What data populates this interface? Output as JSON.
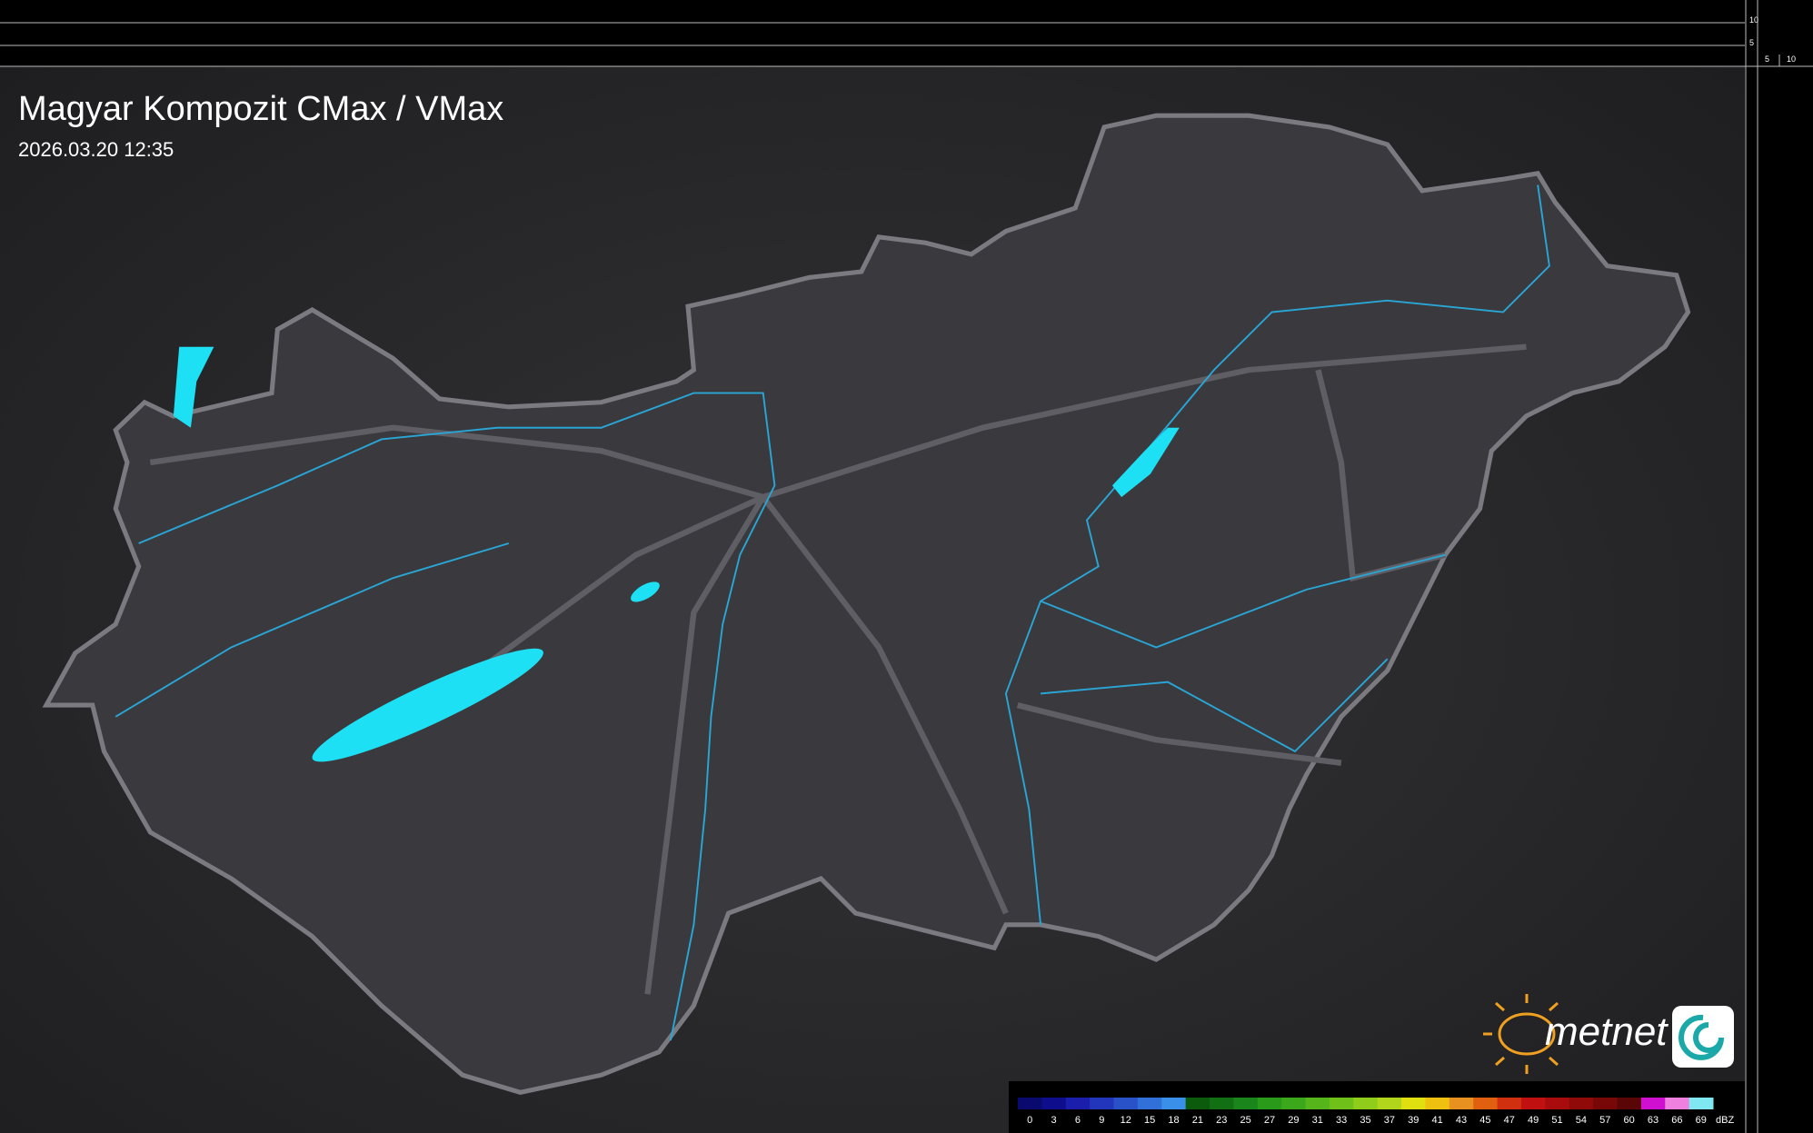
{
  "header": {
    "title": "Magyar Kompozit CMax / VMax",
    "timestamp": "2026.03.20 12:35"
  },
  "scale": {
    "top_labels": [
      "10",
      "5"
    ],
    "side_labels": [
      "5",
      "10"
    ]
  },
  "logo": {
    "text": "metnet"
  },
  "legend": {
    "unit": "dBZ",
    "stops": [
      {
        "value": 0,
        "color": "#0a0a6e"
      },
      {
        "value": 3,
        "color": "#0e0e8c"
      },
      {
        "value": 6,
        "color": "#1a1eaa"
      },
      {
        "value": 9,
        "color": "#2236bb"
      },
      {
        "value": 12,
        "color": "#2a52c8"
      },
      {
        "value": 15,
        "color": "#3070d8"
      },
      {
        "value": 18,
        "color": "#3a90e8"
      },
      {
        "value": 21,
        "color": "#0c5a0c"
      },
      {
        "value": 23,
        "color": "#136f13"
      },
      {
        "value": 25,
        "color": "#1a851a"
      },
      {
        "value": 27,
        "color": "#2a9a1a"
      },
      {
        "value": 29,
        "color": "#3aa81a"
      },
      {
        "value": 31,
        "color": "#55b51a"
      },
      {
        "value": 33,
        "color": "#70c01a"
      },
      {
        "value": 35,
        "color": "#90cc1a"
      },
      {
        "value": 37,
        "color": "#b0d51a"
      },
      {
        "value": 39,
        "color": "#e0e010"
      },
      {
        "value": 41,
        "color": "#f0c010"
      },
      {
        "value": 43,
        "color": "#e89020"
      },
      {
        "value": 45,
        "color": "#e06010"
      },
      {
        "value": 47,
        "color": "#d03010"
      },
      {
        "value": 49,
        "color": "#c01010"
      },
      {
        "value": 51,
        "color": "#a80c0c"
      },
      {
        "value": 54,
        "color": "#900a0a"
      },
      {
        "value": 57,
        "color": "#780808"
      },
      {
        "value": 60,
        "color": "#5a0606"
      },
      {
        "value": 63,
        "color": "#d010d0"
      },
      {
        "value": 66,
        "color": "#f080e0"
      },
      {
        "value": 69,
        "color": "#80e8f0"
      }
    ]
  }
}
